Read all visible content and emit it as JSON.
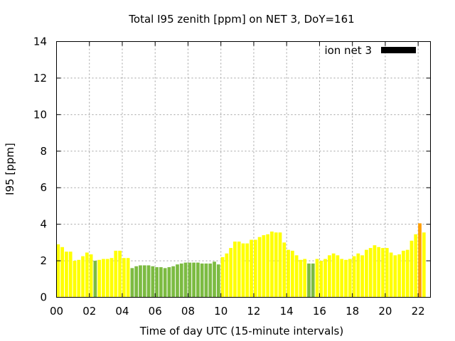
{
  "chart_data": {
    "type": "bar",
    "title": "Total I95 zenith [ppm] on NET 3, DoY=161",
    "xlabel": "Time of day UTC (15-minute intervals)",
    "ylabel": "I95 [ppm]",
    "xlim": [
      0,
      22.75
    ],
    "ylim": [
      0,
      14
    ],
    "x_ticks": [
      "00",
      "02",
      "04",
      "06",
      "08",
      "10",
      "12",
      "14",
      "16",
      "18",
      "20",
      "22"
    ],
    "y_ticks": [
      "0",
      "2",
      "4",
      "6",
      "8",
      "10",
      "12",
      "14"
    ],
    "grid": true,
    "legend": {
      "label": "ion net 3",
      "position": "top-right",
      "color": "#000000"
    },
    "interval_hours": 0.25,
    "colors": {
      "Y": "#ffff00",
      "G": "#7cbb42",
      "O": "#ff9f00"
    },
    "values": [
      2.9,
      2.75,
      2.5,
      2.5,
      2.0,
      2.05,
      2.25,
      2.45,
      2.35,
      2.0,
      2.05,
      2.1,
      2.1,
      2.15,
      2.55,
      2.55,
      2.15,
      2.15,
      1.6,
      1.7,
      1.75,
      1.75,
      1.75,
      1.7,
      1.65,
      1.65,
      1.6,
      1.65,
      1.7,
      1.8,
      1.85,
      1.9,
      1.9,
      1.9,
      1.9,
      1.85,
      1.85,
      1.85,
      1.95,
      1.8,
      2.2,
      2.4,
      2.7,
      3.05,
      3.05,
      2.95,
      2.95,
      3.15,
      3.15,
      3.3,
      3.4,
      3.45,
      3.6,
      3.55,
      3.55,
      3.0,
      2.6,
      2.55,
      2.3,
      2.05,
      2.1,
      1.85,
      1.85,
      2.1,
      2.0,
      2.1,
      2.3,
      2.4,
      2.3,
      2.1,
      2.05,
      2.1,
      2.25,
      2.4,
      2.3,
      2.6,
      2.7,
      2.85,
      2.75,
      2.7,
      2.7,
      2.45,
      2.3,
      2.35,
      2.55,
      2.6,
      3.1,
      3.45,
      4.05,
      3.55
    ],
    "bar_colors": [
      "Y",
      "Y",
      "Y",
      "Y",
      "Y",
      "Y",
      "Y",
      "Y",
      "Y",
      "G",
      "Y",
      "Y",
      "Y",
      "Y",
      "Y",
      "Y",
      "Y",
      "Y",
      "G",
      "G",
      "G",
      "G",
      "G",
      "G",
      "G",
      "G",
      "G",
      "G",
      "G",
      "G",
      "G",
      "G",
      "G",
      "G",
      "G",
      "G",
      "G",
      "G",
      "G",
      "G",
      "Y",
      "Y",
      "Y",
      "Y",
      "Y",
      "Y",
      "Y",
      "Y",
      "Y",
      "Y",
      "Y",
      "Y",
      "Y",
      "Y",
      "Y",
      "Y",
      "Y",
      "Y",
      "Y",
      "Y",
      "Y",
      "G",
      "G",
      "Y",
      "Y",
      "Y",
      "Y",
      "Y",
      "Y",
      "Y",
      "Y",
      "Y",
      "Y",
      "Y",
      "Y",
      "Y",
      "Y",
      "Y",
      "Y",
      "Y",
      "Y",
      "Y",
      "Y",
      "Y",
      "Y",
      "Y",
      "Y",
      "Y",
      "O",
      "Y"
    ]
  }
}
